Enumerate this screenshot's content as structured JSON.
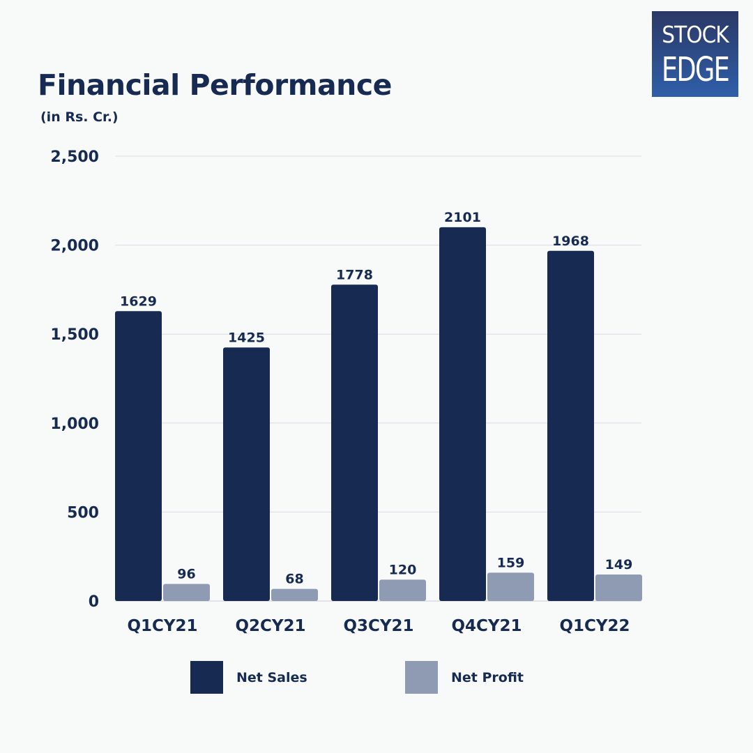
{
  "logo": {
    "line1": "STOCK",
    "line2": "EDGE"
  },
  "chart_data": {
    "type": "bar",
    "title": "Financial Performance",
    "subtitle": "(in Rs. Cr.)",
    "categories": [
      "Q1CY21",
      "Q2CY21",
      "Q3CY21",
      "Q4CY21",
      "Q1CY22"
    ],
    "series": [
      {
        "name": "Net Sales",
        "values": [
          1629,
          1425,
          1778,
          2101,
          1968
        ],
        "color": "#162a52"
      },
      {
        "name": "Net Profit",
        "values": [
          96,
          68,
          120,
          159,
          149
        ],
        "color": "#8f9bb2"
      }
    ],
    "ylim": [
      0,
      2500
    ],
    "yticks": [
      0,
      500,
      1000,
      1500,
      2000,
      2500
    ],
    "ytick_labels": [
      "0",
      "500",
      "1,000",
      "1,500",
      "2,000",
      "2,500"
    ],
    "grid": true,
    "legend": "bottom",
    "data_labels": true
  }
}
